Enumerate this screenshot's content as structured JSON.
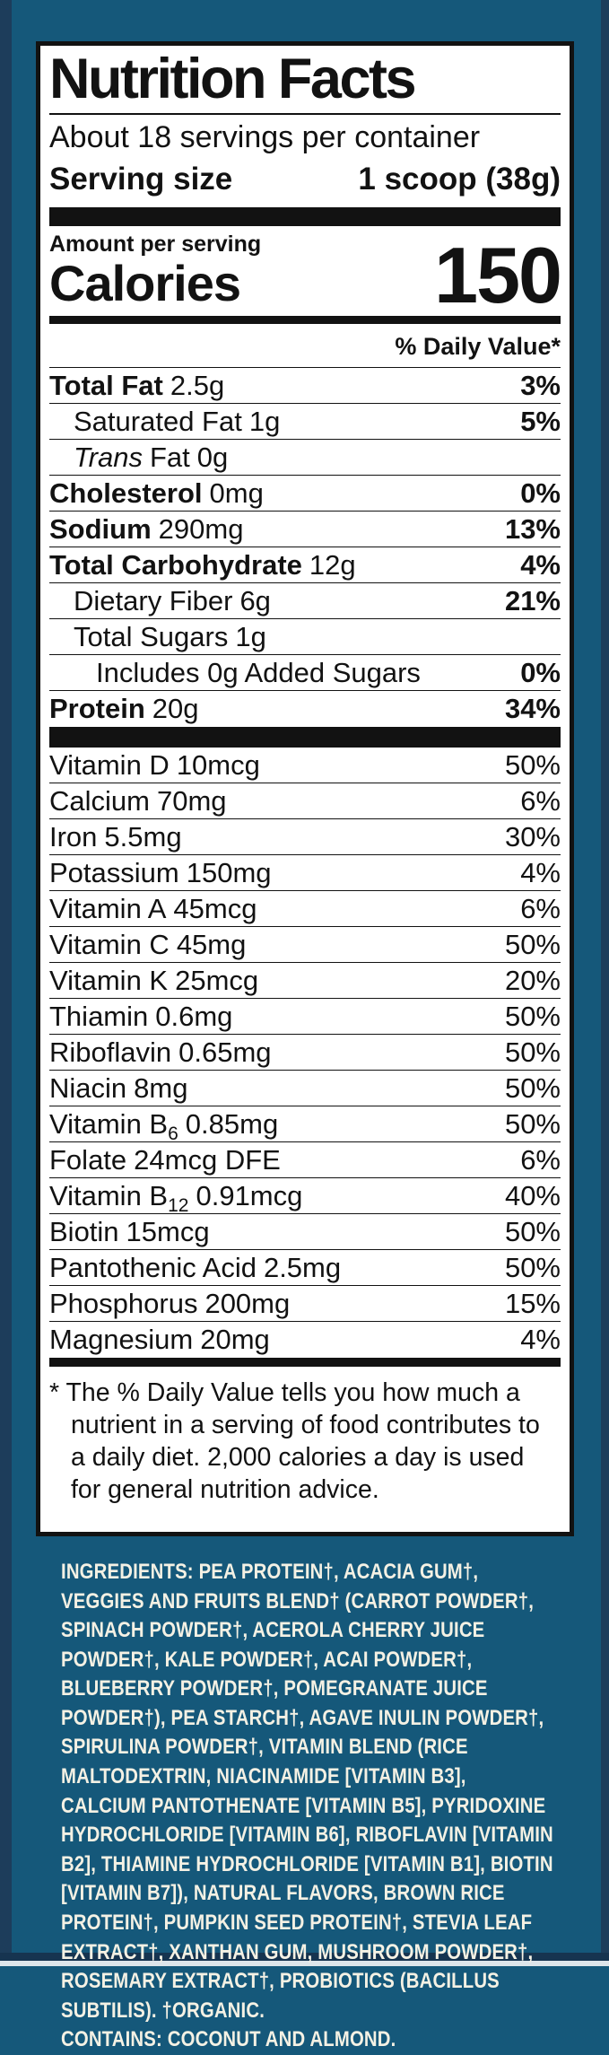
{
  "colors": {
    "background_teal": "#15587a",
    "edge_navy": "#1d3d5b",
    "panel_background": "#ffffff",
    "panel_text": "#121212",
    "ingredients_text": "#f4f1e4",
    "bottom_strip_light": "#dde5ea"
  },
  "label": {
    "title": "Nutrition Facts",
    "servings_per_container": "About 18 servings per container",
    "serving_size_label": "Serving size",
    "serving_size_value": "1 scoop (38g)",
    "amount_per_serving": "Amount per serving",
    "calories_label": "Calories",
    "calories_value": "150",
    "daily_value_header": "% Daily Value*",
    "rows": [
      {
        "name": "Total Fat",
        "amount": "2.5g",
        "dv": "3%"
      },
      {
        "name": "Saturated Fat",
        "amount": "1g",
        "dv": "5%"
      },
      {
        "name_italic": "Trans",
        "name": "Fat",
        "amount": "0g",
        "dv": ""
      },
      {
        "name": "Cholesterol",
        "amount": "0mg",
        "dv": "0%"
      },
      {
        "name": "Sodium",
        "amount": "290mg",
        "dv": "13%"
      },
      {
        "name": "Total Carbohydrate",
        "amount": "12g",
        "dv": "4%"
      },
      {
        "name": "Dietary Fiber",
        "amount": "6g",
        "dv": "21%"
      },
      {
        "name": "Total Sugars",
        "amount": "1g",
        "dv": ""
      },
      {
        "name": "Includes 0g Added Sugars",
        "amount": "",
        "dv": "0%"
      },
      {
        "name": "Protein",
        "amount": "20g",
        "dv": "34%"
      }
    ],
    "vitamins": [
      {
        "name": "Vitamin D",
        "amount": "10mcg",
        "dv": "50%"
      },
      {
        "name": "Calcium",
        "amount": "70mg",
        "dv": "6%"
      },
      {
        "name": "Iron",
        "amount": "5.5mg",
        "dv": "30%"
      },
      {
        "name": "Potassium",
        "amount": "150mg",
        "dv": "4%"
      },
      {
        "name": "Vitamin A",
        "amount": "45mcg",
        "dv": "6%"
      },
      {
        "name": "Vitamin C",
        "amount": "45mg",
        "dv": "50%"
      },
      {
        "name": "Vitamin K",
        "amount": "25mcg",
        "dv": "20%"
      },
      {
        "name": "Thiamin",
        "amount": "0.6mg",
        "dv": "50%"
      },
      {
        "name": "Riboflavin",
        "amount": "0.65mg",
        "dv": "50%"
      },
      {
        "name": "Niacin",
        "amount": "8mg",
        "dv": "50%"
      },
      {
        "name": "Vitamin B",
        "sub": "6",
        "amount": "0.85mg",
        "dv": "50%"
      },
      {
        "name": "Folate",
        "amount": "24mcg DFE",
        "dv": "6%"
      },
      {
        "name": "Vitamin B",
        "sub": "12",
        "amount": "0.91mcg",
        "dv": "40%"
      },
      {
        "name": "Biotin",
        "amount": "15mcg",
        "dv": "50%"
      },
      {
        "name": "Pantothenic Acid",
        "amount": "2.5mg",
        "dv": "50%"
      },
      {
        "name": "Phosphorus",
        "amount": "200mg",
        "dv": "15%"
      },
      {
        "name": "Magnesium",
        "amount": "20mg",
        "dv": "4%"
      }
    ],
    "footnote": "* The % Daily Value tells you how much a nutrient in a serving of food contributes to a daily diet. 2,000 calories a day is used for general nutrition advice."
  },
  "ingredients": {
    "heading": "INGREDIENTS:",
    "text": "PEA PROTEIN†, ACACIA GUM†, VEGGIES AND FRUITS BLEND† (CARROT POWDER†, SPINACH POWDER†, ACEROLA CHERRY JUICE POWDER†, KALE POWDER†, ACAI POWDER†, BLUEBERRY POWDER†, POMEGRANATE JUICE POWDER†), PEA STARCH†, AGAVE INULIN POWDER†, SPIRULINA POWDER†, VITAMIN BLEND (RICE MALTODEXTRIN, NIACINAMIDE [VITAMIN B3], CALCIUM PANTOTHENATE [VITAMIN B5], PYRIDOXINE HYDROCHLORIDE [VITAMIN B6], RIBOFLAVIN [VITAMIN B2], THIAMINE HYDROCHLORIDE [VITAMIN B1], BIOTIN [VITAMIN B7]), NATURAL FLAVORS, BROWN RICE PROTEIN†, PUMPKIN SEED PROTEIN†, STEVIA LEAF EXTRACT†, XANTHAN GUM, MUSHROOM POWDER†, ROSEMARY EXTRACT†, PROBIOTICS (BACILLUS SUBTILIS). †ORGANIC.",
    "contains": "CONTAINS: COCONUT AND ALMOND."
  }
}
